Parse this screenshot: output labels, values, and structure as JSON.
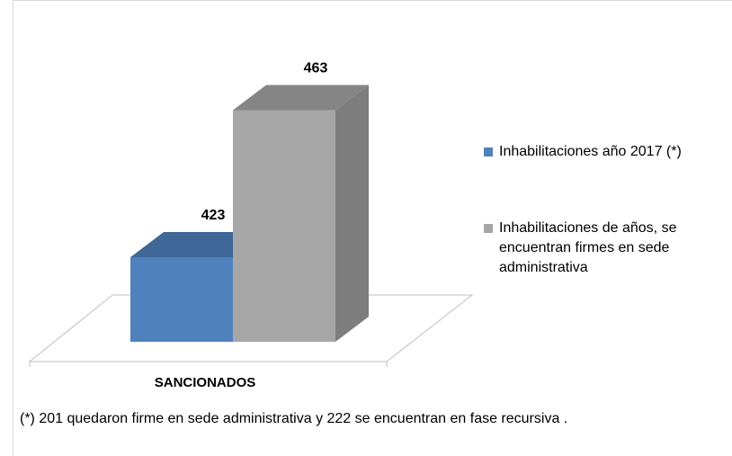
{
  "chart_data": {
    "type": "bar3d",
    "categories": [
      "SANCIONADOS"
    ],
    "series": [
      {
        "name": "Inhabilitaciones año 2017 (*)",
        "color": "#4f81bd",
        "values": [
          423
        ]
      },
      {
        "name": "Inhabilitaciones de años, se encuentran firmes en sede administrativa",
        "color": "#a6a6a6",
        "values": [
          463
        ]
      }
    ],
    "ylim": [
      400,
      480
    ],
    "legend": "right",
    "footnote": "(*) 201 quedaron firme en sede administrativa y  222 se encuentran en fase recursiva ."
  }
}
